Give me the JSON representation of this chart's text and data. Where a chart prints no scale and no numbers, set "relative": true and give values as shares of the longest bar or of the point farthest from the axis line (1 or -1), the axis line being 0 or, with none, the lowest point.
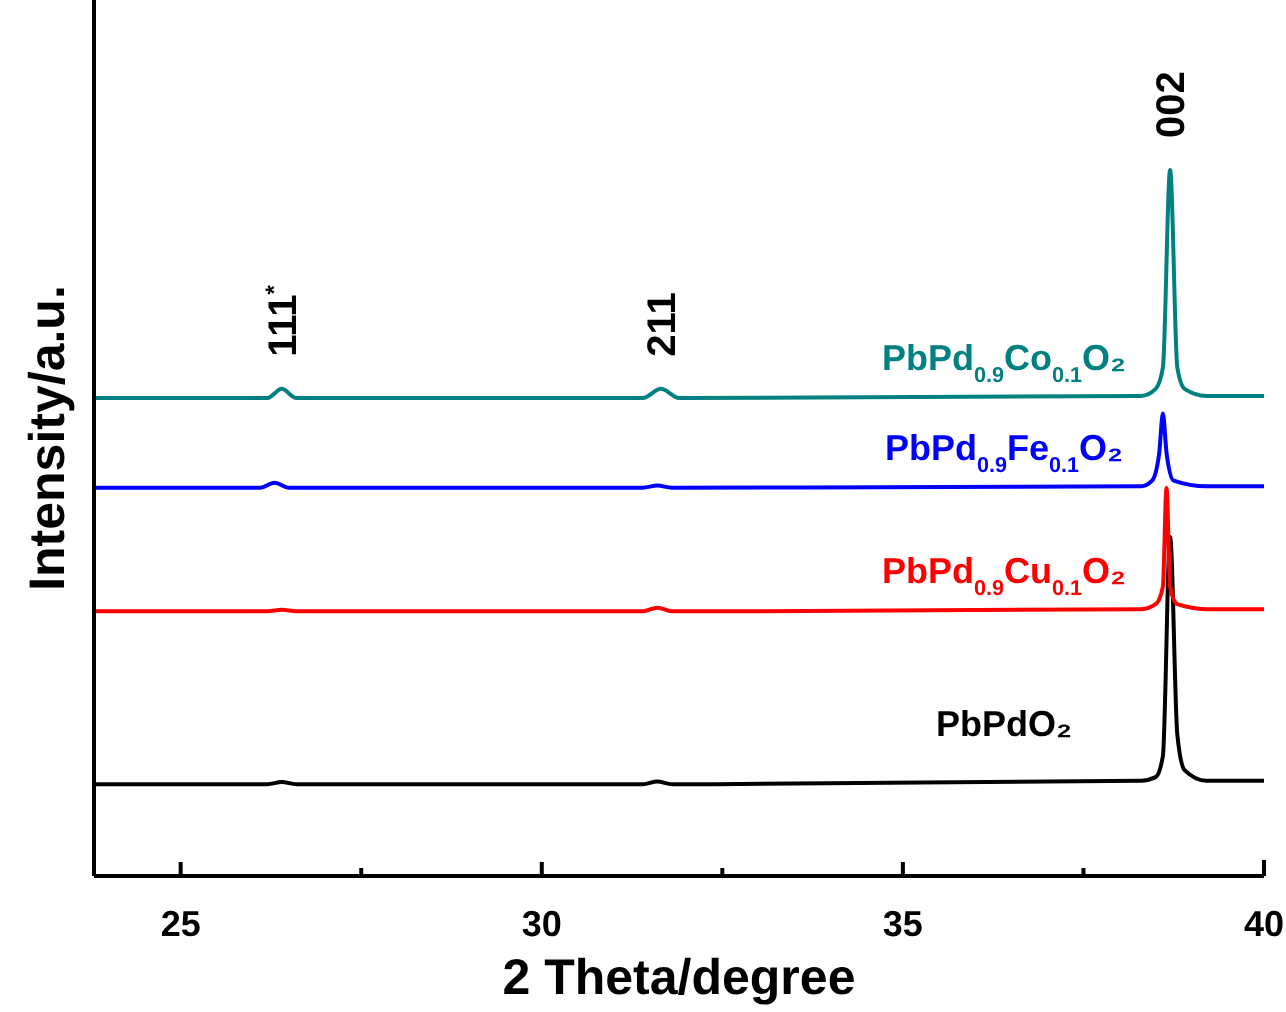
{
  "chart_data": {
    "type": "line",
    "relative": true,
    "xlabel": "2 Theta/degree",
    "ylabel": "Intensity/a.u.",
    "xlim": [
      23.8,
      40
    ],
    "xticks": [
      25,
      {
        "value": 27.5,
        "label": null
      },
      30,
      {
        "value": 32.5,
        "label": null
      },
      35,
      {
        "value": 37.5,
        "label": null
      },
      40
    ],
    "tick_labels": "x",
    "marker": "none",
    "line_style": "solid",
    "series": [
      {
        "name": "PbPdO₂",
        "color": "#000000",
        "x": [
          23.8,
          26.2,
          26.4,
          26.6,
          31.4,
          31.6,
          31.8,
          38.3,
          38.5,
          38.6,
          38.7,
          38.8,
          38.9,
          39.2,
          40
        ],
        "values": [
          0.13,
          0.13,
          0.133,
          0.13,
          0.13,
          0.134,
          0.13,
          0.135,
          0.14,
          0.17,
          0.48,
          0.2,
          0.15,
          0.135,
          0.135
        ]
      },
      {
        "name": "PbPd$_{0.9}$Cu$_{0.1}$O₂",
        "color": "#ff0000",
        "x": [
          23.8,
          26.2,
          26.4,
          26.6,
          31.4,
          31.6,
          31.8,
          38.3,
          38.5,
          38.6,
          38.65,
          38.7,
          38.8,
          39.2,
          40
        ],
        "values": [
          0.375,
          0.375,
          0.377,
          0.375,
          0.375,
          0.38,
          0.375,
          0.378,
          0.385,
          0.41,
          0.55,
          0.41,
          0.385,
          0.378,
          0.378
        ]
      },
      {
        "name": "PbPd$_{0.9}$Fe$_{0.1}$O₂",
        "color": "#0000ff",
        "x": [
          23.8,
          26.1,
          26.3,
          26.5,
          31.4,
          31.6,
          31.8,
          38.3,
          38.45,
          38.55,
          38.6,
          38.65,
          38.75,
          39.2,
          40
        ],
        "values": [
          0.55,
          0.55,
          0.557,
          0.55,
          0.55,
          0.553,
          0.55,
          0.552,
          0.56,
          0.6,
          0.655,
          0.6,
          0.56,
          0.552,
          0.552
        ]
      },
      {
        "name": "PbPd$_{0.9}$Co$_{0.1}$O₂",
        "color": "#008080",
        "x": [
          23.8,
          26.2,
          26.4,
          26.6,
          31.4,
          31.65,
          31.9,
          38.3,
          38.5,
          38.6,
          38.7,
          38.8,
          38.9,
          39.2,
          40
        ],
        "values": [
          0.677,
          0.677,
          0.69,
          0.677,
          0.677,
          0.69,
          0.677,
          0.68,
          0.69,
          0.72,
          1.0,
          0.72,
          0.69,
          0.68,
          0.68
        ]
      }
    ],
    "annotations": [
      {
        "text": "111$^{*}$",
        "x": 26.4,
        "y": 0.69
      },
      {
        "text": "211",
        "x": 31.65,
        "y": 0.69
      },
      {
        "text": "002",
        "x": 38.7,
        "y": 1.0
      }
    ]
  }
}
